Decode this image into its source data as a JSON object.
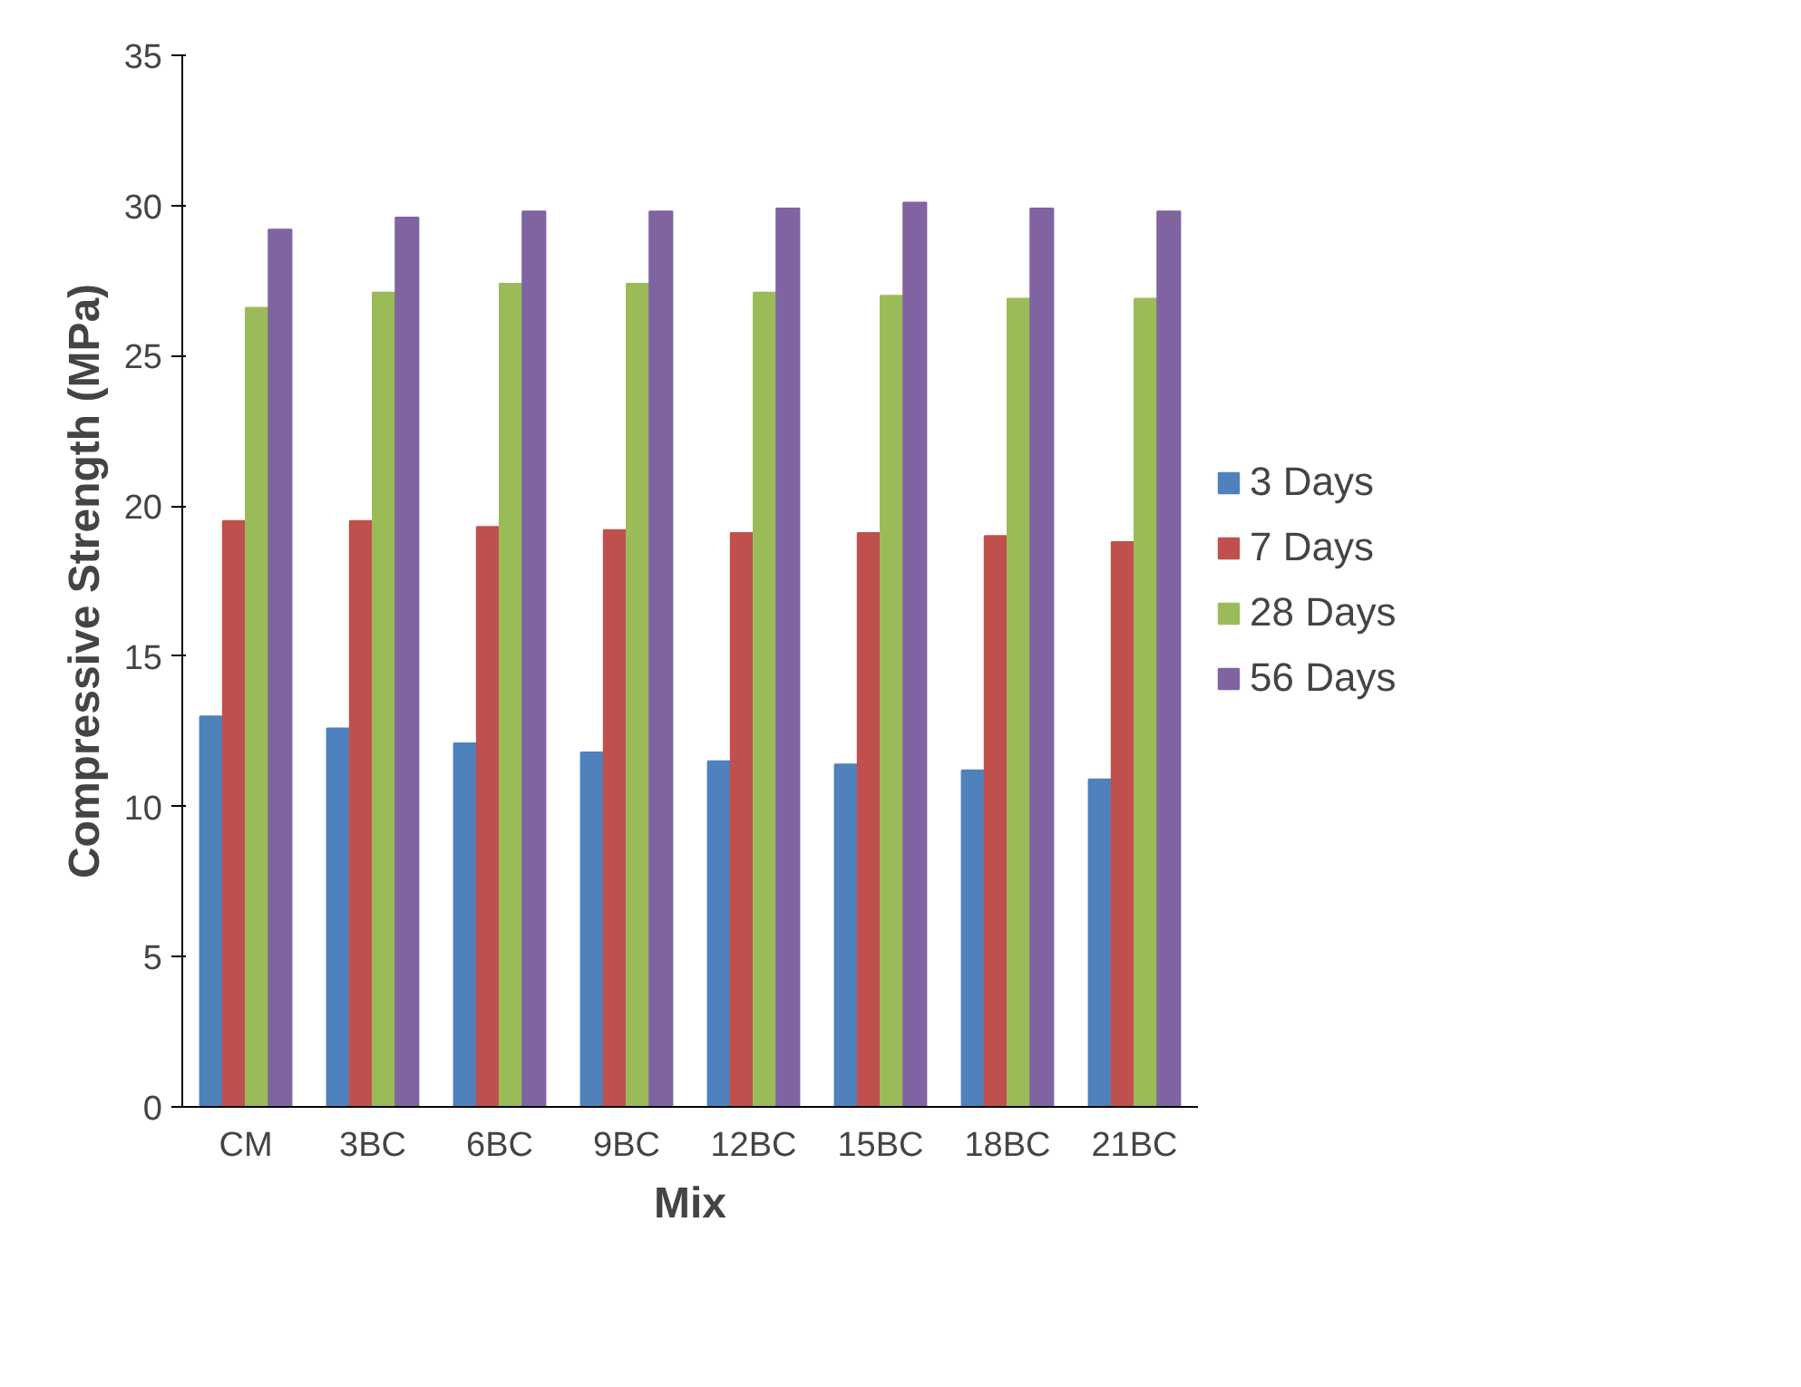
{
  "chart_data": {
    "type": "bar",
    "xlabel": "Mix",
    "ylabel": "Compressive Strength (MPa)",
    "categories": [
      "CM",
      "3BC",
      "6BC",
      "9BC",
      "12BC",
      "15BC",
      "18BC",
      "21BC"
    ],
    "series": [
      {
        "name": "3 Days",
        "color": "#4f81bd",
        "values": [
          13.0,
          12.6,
          12.1,
          11.8,
          11.5,
          11.4,
          11.2,
          10.9
        ]
      },
      {
        "name": "7 Days",
        "color": "#c0504d",
        "values": [
          19.5,
          19.5,
          19.3,
          19.2,
          19.1,
          19.1,
          19.0,
          18.8
        ]
      },
      {
        "name": "28 Days",
        "color": "#9bbb59",
        "values": [
          26.6,
          27.1,
          27.4,
          27.4,
          27.1,
          27.0,
          26.9,
          26.9
        ]
      },
      {
        "name": "56 Days",
        "color": "#8064a2",
        "values": [
          29.2,
          29.6,
          29.8,
          29.8,
          29.9,
          30.1,
          29.9,
          29.8
        ]
      }
    ],
    "ylim": [
      0,
      35
    ],
    "yticks": [
      0,
      5,
      10,
      15,
      20,
      25,
      30,
      35
    ],
    "grid": false,
    "legend": "right"
  }
}
